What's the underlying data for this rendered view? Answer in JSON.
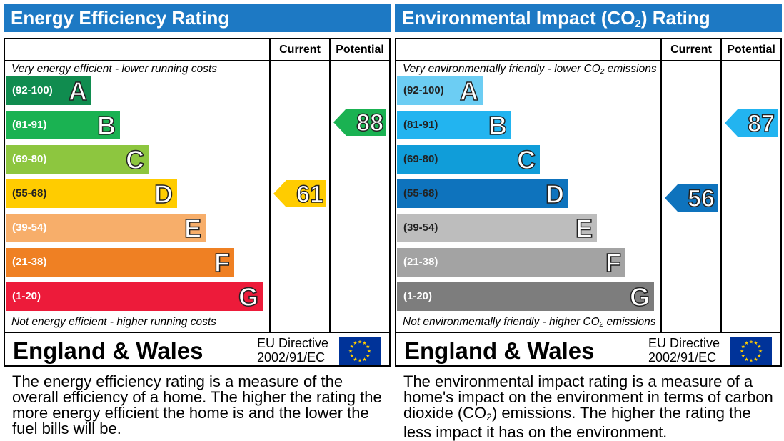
{
  "colors": {
    "header": "#1d79c4",
    "ee_bands": [
      "#108c4f",
      "#1ab252",
      "#8dc63f",
      "#ffcc00",
      "#f7ae6a",
      "#ef8023",
      "#ed1b3a"
    ],
    "ei_bands": [
      "#6ccdf3",
      "#22b4f0",
      "#109dd9",
      "#0e73bd",
      "#bdbdbd",
      "#a3a3a3",
      "#7d7d7d"
    ]
  },
  "chart_data": [
    {
      "type": "bar",
      "title": "Energy Efficiency Rating",
      "columns": [
        "Current",
        "Potential"
      ],
      "top_note": "Very energy efficient - lower running costs",
      "bottom_note": "Not energy efficient - higher running costs",
      "bands": [
        {
          "range": "(92-100)",
          "letter": "A"
        },
        {
          "range": "(81-91)",
          "letter": "B"
        },
        {
          "range": "(69-80)",
          "letter": "C"
        },
        {
          "range": "(55-68)",
          "letter": "D"
        },
        {
          "range": "(39-54)",
          "letter": "E"
        },
        {
          "range": "(21-38)",
          "letter": "F"
        },
        {
          "range": "(1-20)",
          "letter": "G"
        }
      ],
      "current": 61,
      "potential": 88,
      "region": "England & Wales",
      "directive_line1": "EU Directive",
      "directive_line2": "2002/91/EC",
      "description": "The energy efficiency rating is a measure of the overall efficiency of a home. The higher the rating the more energy efficient the home is and the lower the fuel bills will be."
    },
    {
      "type": "bar",
      "title_pre": "Environmental Impact (CO",
      "title_sub": "2",
      "title_post": ") Rating",
      "columns": [
        "Current",
        "Potential"
      ],
      "top_note_pre": "Very environmentally friendly - lower CO",
      "top_note_sub": "2",
      "top_note_post": " emissions",
      "bottom_note_pre": "Not environmentally friendly - higher CO",
      "bottom_note_sub": "2",
      "bottom_note_post": " emissions",
      "bands": [
        {
          "range": "(92-100)",
          "letter": "A"
        },
        {
          "range": "(81-91)",
          "letter": "B"
        },
        {
          "range": "(69-80)",
          "letter": "C"
        },
        {
          "range": "(55-68)",
          "letter": "D"
        },
        {
          "range": "(39-54)",
          "letter": "E"
        },
        {
          "range": "(21-38)",
          "letter": "F"
        },
        {
          "range": "(1-20)",
          "letter": "G"
        }
      ],
      "current": 56,
      "potential": 87,
      "region": "England & Wales",
      "directive_line1": "EU Directive",
      "directive_line2": "2002/91/EC",
      "description_pre": "The environmental impact rating is a measure of a home's impact on the environment in terms of carbon dioxide (CO",
      "description_sub": "2",
      "description_post": ") emissions. The higher the rating the less impact it has on the environment."
    }
  ]
}
